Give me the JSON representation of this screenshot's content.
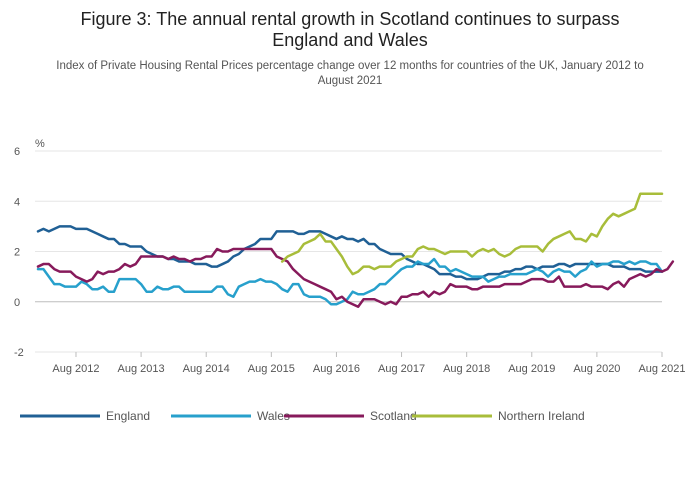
{
  "chart_data": {
    "type": "line",
    "title": "Figure 3: The annual rental growth in Scotland continues to surpass England and Wales",
    "title_lines": [
      "Figure 3: The annual rental growth in Scotland continues to surpass",
      "England and Wales"
    ],
    "subtitle": "Index of Private Housing Rental Prices percentage change over 12 months for countries of the UK, January 2012 to August 2021",
    "subtitle_lines": [
      "Index of Private Housing Rental Prices percentage change over 12 months for countries of the UK, January 2012 to",
      "August 2021"
    ],
    "ylabel": "%",
    "xlabel": "",
    "ylim": [
      -2,
      6
    ],
    "yticks": [
      -2,
      0,
      2,
      4,
      6
    ],
    "x_start": "Jan 2012",
    "x_tick_labels": [
      "Aug 2012",
      "Aug 2013",
      "Aug 2014",
      "Aug 2015",
      "Aug 2016",
      "Aug 2017",
      "Aug 2018",
      "Aug 2019",
      "Aug 2020",
      "Aug 2021"
    ],
    "x_tick_month_index": [
      7,
      19,
      31,
      43,
      55,
      67,
      79,
      91,
      103,
      115
    ],
    "n_months": 116,
    "legend_position": "bottom",
    "series": [
      {
        "name": "England",
        "color": "#206095",
        "start_index": 0,
        "values": [
          2.8,
          2.9,
          2.8,
          2.9,
          3.0,
          3.0,
          3.0,
          2.9,
          2.9,
          2.9,
          2.8,
          2.7,
          2.6,
          2.5,
          2.5,
          2.3,
          2.3,
          2.2,
          2.2,
          2.2,
          2.0,
          1.9,
          1.8,
          1.8,
          1.7,
          1.7,
          1.6,
          1.6,
          1.6,
          1.5,
          1.5,
          1.5,
          1.4,
          1.4,
          1.5,
          1.6,
          1.8,
          1.9,
          2.1,
          2.2,
          2.3,
          2.5,
          2.5,
          2.5,
          2.8,
          2.8,
          2.8,
          2.8,
          2.7,
          2.7,
          2.8,
          2.8,
          2.8,
          2.7,
          2.6,
          2.5,
          2.6,
          2.5,
          2.5,
          2.4,
          2.5,
          2.3,
          2.3,
          2.1,
          2.0,
          1.9,
          1.9,
          1.9,
          1.7,
          1.6,
          1.5,
          1.5,
          1.4,
          1.3,
          1.1,
          1.1,
          1.1,
          1.0,
          1.0,
          0.9,
          0.9,
          0.9,
          1.0,
          1.1,
          1.1,
          1.1,
          1.2,
          1.2,
          1.3,
          1.3,
          1.4,
          1.4,
          1.3,
          1.4,
          1.4,
          1.4,
          1.5,
          1.5,
          1.4,
          1.5,
          1.5,
          1.5,
          1.5,
          1.5,
          1.5,
          1.5,
          1.4,
          1.4,
          1.4,
          1.3,
          1.3,
          1.3,
          1.2,
          1.2,
          1.2,
          1.2
        ]
      },
      {
        "name": "Wales",
        "color": "#27a0cc",
        "start_index": 0,
        "values": [
          1.3,
          1.3,
          1.0,
          0.7,
          0.7,
          0.6,
          0.6,
          0.6,
          0.8,
          0.7,
          0.5,
          0.5,
          0.6,
          0.4,
          0.4,
          0.9,
          0.9,
          0.9,
          0.9,
          0.7,
          0.4,
          0.4,
          0.6,
          0.5,
          0.5,
          0.6,
          0.6,
          0.4,
          0.4,
          0.4,
          0.4,
          0.4,
          0.4,
          0.6,
          0.6,
          0.3,
          0.2,
          0.6,
          0.7,
          0.8,
          0.8,
          0.9,
          0.8,
          0.8,
          0.7,
          0.5,
          0.4,
          0.7,
          0.7,
          0.3,
          0.2,
          0.2,
          0.2,
          0.1,
          -0.1,
          -0.1,
          0.0,
          0.1,
          0.4,
          0.3,
          0.3,
          0.4,
          0.5,
          0.7,
          0.7,
          0.9,
          1.1,
          1.3,
          1.4,
          1.4,
          1.6,
          1.5,
          1.5,
          1.7,
          1.4,
          1.4,
          1.2,
          1.3,
          1.2,
          1.1,
          1.0,
          1.0,
          1.0,
          0.8,
          0.9,
          1.0,
          1.0,
          1.1,
          1.1,
          1.1,
          1.1,
          1.2,
          1.3,
          1.2,
          1.0,
          1.2,
          1.3,
          1.2,
          1.2,
          1.0,
          1.2,
          1.3,
          1.6,
          1.4,
          1.5,
          1.5,
          1.6,
          1.6,
          1.5,
          1.6,
          1.5,
          1.6,
          1.6,
          1.5,
          1.5,
          1.2
        ]
      },
      {
        "name": "Scotland",
        "color": "#871a5b",
        "start_index": 0,
        "values": [
          1.4,
          1.5,
          1.5,
          1.3,
          1.2,
          1.2,
          1.2,
          1.0,
          0.9,
          0.8,
          0.9,
          1.2,
          1.1,
          1.2,
          1.2,
          1.3,
          1.5,
          1.4,
          1.5,
          1.8,
          1.8,
          1.8,
          1.8,
          1.8,
          1.7,
          1.8,
          1.7,
          1.7,
          1.6,
          1.7,
          1.7,
          1.8,
          1.8,
          2.1,
          2.0,
          2.0,
          2.1,
          2.1,
          2.1,
          2.1,
          2.1,
          2.1,
          2.1,
          2.1,
          1.8,
          1.7,
          1.6,
          1.3,
          1.1,
          0.9,
          0.8,
          0.7,
          0.6,
          0.5,
          0.4,
          0.1,
          0.2,
          0.0,
          -0.1,
          -0.2,
          0.1,
          0.1,
          0.1,
          0.0,
          -0.1,
          0.0,
          -0.1,
          0.2,
          0.2,
          0.3,
          0.3,
          0.4,
          0.2,
          0.4,
          0.3,
          0.4,
          0.7,
          0.6,
          0.6,
          0.6,
          0.5,
          0.5,
          0.6,
          0.6,
          0.6,
          0.6,
          0.7,
          0.7,
          0.7,
          0.7,
          0.8,
          0.9,
          0.9,
          0.9,
          0.8,
          0.8,
          1.0,
          0.6,
          0.6,
          0.6,
          0.6,
          0.7,
          0.6,
          0.6,
          0.6,
          0.5,
          0.7,
          0.8,
          0.6,
          0.9,
          1.0,
          1.1,
          1.0,
          1.1,
          1.3,
          1.2,
          1.3,
          1.6
        ]
      },
      {
        "name": "Northern Ireland",
        "color": "#a8bd3a",
        "start_index": 45,
        "values": [
          1.6,
          1.8,
          1.9,
          2.0,
          2.3,
          2.4,
          2.5,
          2.7,
          2.4,
          2.4,
          2.1,
          1.8,
          1.4,
          1.1,
          1.2,
          1.4,
          1.4,
          1.3,
          1.4,
          1.4,
          1.4,
          1.6,
          1.7,
          1.8,
          1.8,
          2.1,
          2.2,
          2.1,
          2.1,
          2.0,
          1.9,
          2.0,
          2.0,
          2.0,
          2.0,
          1.8,
          2.0,
          2.1,
          2.0,
          2.1,
          1.9,
          1.8,
          1.9,
          2.1,
          2.2,
          2.2,
          2.2,
          2.2,
          2.0,
          2.3,
          2.5,
          2.6,
          2.7,
          2.8,
          2.5,
          2.5,
          2.4,
          2.7,
          2.6,
          3.0,
          3.3,
          3.5,
          3.4,
          3.5,
          3.6,
          3.7,
          4.3,
          4.3,
          4.3,
          4.3,
          4.3
        ]
      }
    ]
  }
}
